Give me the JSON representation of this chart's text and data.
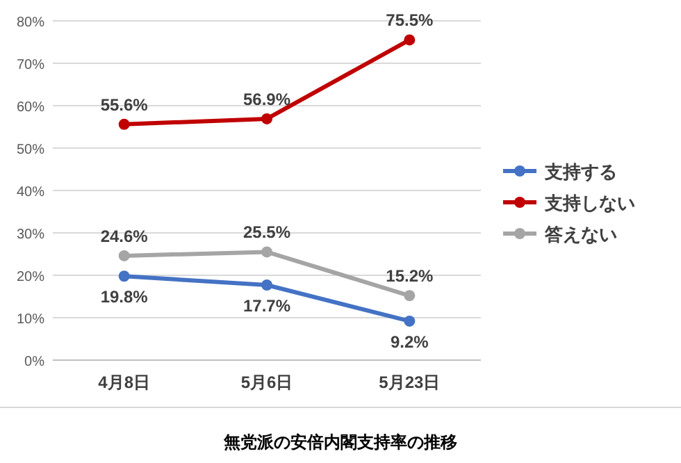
{
  "chart_data": {
    "type": "line",
    "title": "無党派の安倍内閣支持率の推移",
    "categories": [
      "4月8日",
      "5月6日",
      "5月23日"
    ],
    "series": [
      {
        "name": "支持する",
        "color": "#4472c4",
        "values": [
          19.8,
          17.7,
          9.2
        ],
        "value_labels": [
          "19.8%",
          "17.7%",
          "9.2%"
        ]
      },
      {
        "name": "支持しない",
        "color": "#c00000",
        "values": [
          55.6,
          56.9,
          75.5
        ],
        "value_labels": [
          "55.6%",
          "56.9%",
          "75.5%"
        ]
      },
      {
        "name": "答えない",
        "color": "#a5a5a5",
        "values": [
          24.6,
          25.5,
          15.2
        ],
        "value_labels": [
          "24.6%",
          "25.5%",
          "15.2%"
        ]
      }
    ],
    "ylim": [
      0,
      80
    ],
    "yticks": [
      {
        "value": 0,
        "label": "0%"
      },
      {
        "value": 10,
        "label": "10%"
      },
      {
        "value": 20,
        "label": "20%"
      },
      {
        "value": 30,
        "label": "30%"
      },
      {
        "value": 40,
        "label": "40%"
      },
      {
        "value": 50,
        "label": "50%"
      },
      {
        "value": 60,
        "label": "60%"
      },
      {
        "value": 70,
        "label": "70%"
      },
      {
        "value": 80,
        "label": "80%"
      }
    ],
    "grid": "y",
    "legend": "right",
    "marker": "circle",
    "line_style": "solid"
  }
}
